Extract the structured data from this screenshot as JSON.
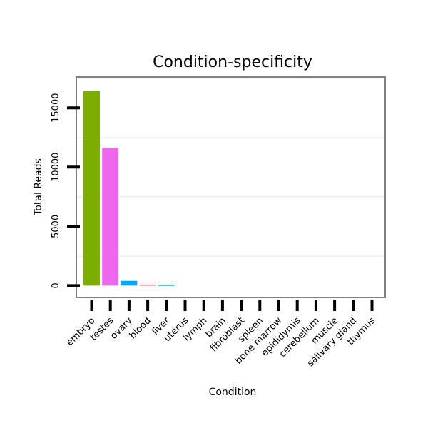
{
  "chart_data": {
    "type": "bar",
    "title": "Condition-specificity",
    "xlabel": "Condition",
    "ylabel": "Total Reads",
    "categories": [
      "embryo",
      "testes",
      "ovary",
      "blood",
      "liver",
      "uterus",
      "lymph",
      "brain",
      "fibroblast",
      "spleen",
      "bone marrow",
      "epididymis",
      "cerebellum",
      "muscle",
      "salivary gland",
      "thymus"
    ],
    "values": [
      16400,
      11600,
      400,
      80,
      70,
      0,
      0,
      0,
      0,
      0,
      0,
      0,
      0,
      0,
      0,
      0
    ],
    "bar_colors": [
      "#7CAE00",
      "#ED68ED",
      "#00A9FF",
      "#F8766D",
      "#00BFC4",
      "#cccccc",
      "#cccccc",
      "#cccccc",
      "#cccccc",
      "#cccccc",
      "#cccccc",
      "#cccccc",
      "#cccccc",
      "#cccccc",
      "#cccccc",
      "#cccccc"
    ],
    "y_ticks": [
      0,
      5000,
      10000,
      15000
    ],
    "ylim": [
      -1000,
      17600
    ],
    "grid": true,
    "legend": "none"
  }
}
